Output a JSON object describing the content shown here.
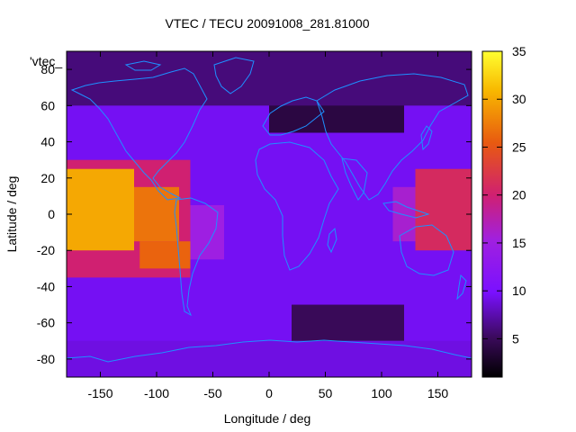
{
  "chart_data": {
    "type": "heatmap",
    "title": "VTEC / TECU 20091008_281.81000",
    "xlabel": "Longitude / deg",
    "ylabel": "Latitude / deg",
    "xlim": [
      -180,
      180
    ],
    "ylim": [
      -90,
      90
    ],
    "xticks": [
      -150,
      -100,
      -50,
      0,
      50,
      100,
      150
    ],
    "yticks": [
      -80,
      -60,
      -40,
      -20,
      0,
      20,
      40,
      60,
      80
    ],
    "colorbar": {
      "min": 1,
      "max": 35,
      "ticks": [
        5,
        10,
        15,
        20,
        25,
        30,
        35
      ]
    },
    "series_key": "'vtec_",
    "overlay": "coastlines",
    "colors": {
      "coast": "#1e90ff",
      "border": "#000000"
    },
    "regions": [
      {
        "lon": [
          -180,
          -120
        ],
        "lat": [
          -20,
          25
        ],
        "value": 30
      },
      {
        "lon": [
          -120,
          -80
        ],
        "lat": [
          -15,
          15
        ],
        "value": 27
      },
      {
        "lon": [
          -115,
          -70
        ],
        "lat": [
          -30,
          -15
        ],
        "value": 26
      },
      {
        "lon": [
          -180,
          -70
        ],
        "lat": [
          -35,
          30
        ],
        "value": 20
      },
      {
        "lon": [
          -70,
          -40
        ],
        "lat": [
          -25,
          5
        ],
        "value": 15
      },
      {
        "lon": [
          130,
          180
        ],
        "lat": [
          -20,
          25
        ],
        "value": 21
      },
      {
        "lon": [
          110,
          130
        ],
        "lat": [
          -15,
          15
        ],
        "value": 16
      },
      {
        "lon": [
          -180,
          180
        ],
        "lat": [
          60,
          90
        ],
        "value": 6
      },
      {
        "lon": [
          0,
          120
        ],
        "lat": [
          45,
          90
        ],
        "value": 4
      },
      {
        "lon": [
          20,
          120
        ],
        "lat": [
          -70,
          -50
        ],
        "value": 5
      },
      {
        "lon": [
          -180,
          180
        ],
        "lat": [
          -90,
          -70
        ],
        "value": 9
      }
    ]
  }
}
